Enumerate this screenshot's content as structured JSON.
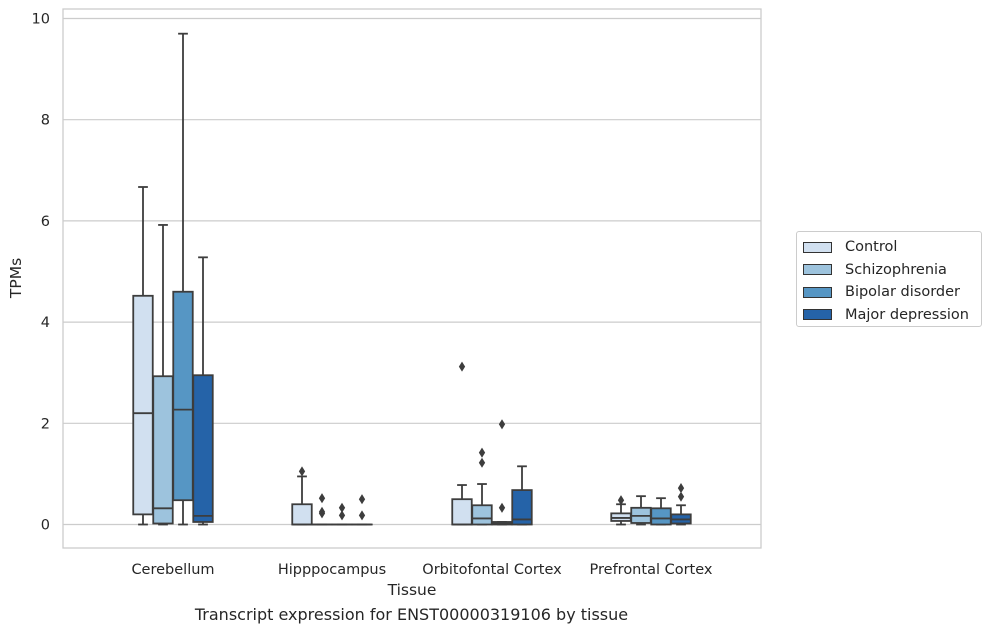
{
  "chart_data": {
    "type": "boxplot",
    "title": "",
    "caption": "Transcript expression for ENST00000319106 by tissue",
    "xlabel": "Tissue",
    "ylabel": "TPMs",
    "ylim": [
      -0.45,
      10.2
    ],
    "yticks": [
      0,
      2,
      4,
      6,
      8,
      10
    ],
    "grid": true,
    "legend_position": "right",
    "categories": [
      "Cerebellum",
      "Hipppocampus",
      "Orbitofontal Cortex",
      "Prefrontal Cortex"
    ],
    "series": [
      {
        "name": "Control",
        "color": "#d1e0f0",
        "boxes": [
          {
            "q1": 0.2,
            "median": 2.2,
            "q3": 4.52,
            "whislo": 0.0,
            "whishi": 6.67,
            "fliers": []
          },
          {
            "q1": 0.0,
            "median": 0.0,
            "q3": 0.4,
            "whislo": 0.0,
            "whishi": 0.95,
            "fliers": [
              1.05
            ]
          },
          {
            "q1": 0.0,
            "median": 0.0,
            "q3": 0.5,
            "whislo": 0.0,
            "whishi": 0.78,
            "fliers": [
              3.12
            ]
          },
          {
            "q1": 0.07,
            "median": 0.13,
            "q3": 0.22,
            "whislo": 0.0,
            "whishi": 0.4,
            "fliers": [
              0.48
            ]
          }
        ]
      },
      {
        "name": "Schizophrenia",
        "color": "#9dc3dd",
        "boxes": [
          {
            "q1": 0.02,
            "median": 0.32,
            "q3": 2.93,
            "whislo": 0.0,
            "whishi": 5.92,
            "fliers": []
          },
          {
            "q1": 0.0,
            "median": 0.0,
            "q3": 0.0,
            "whislo": 0.0,
            "whishi": 0.0,
            "fliers": [
              0.22,
              0.25,
              0.52
            ]
          },
          {
            "q1": 0.0,
            "median": 0.12,
            "q3": 0.38,
            "whislo": 0.0,
            "whishi": 0.8,
            "fliers": [
              1.22,
              1.42
            ]
          },
          {
            "q1": 0.03,
            "median": 0.17,
            "q3": 0.33,
            "whislo": 0.0,
            "whishi": 0.56,
            "fliers": []
          }
        ]
      },
      {
        "name": "Bipolar disorder",
        "color": "#5696c4",
        "boxes": [
          {
            "q1": 0.48,
            "median": 2.27,
            "q3": 4.6,
            "whislo": 0.0,
            "whishi": 9.7,
            "fliers": []
          },
          {
            "q1": 0.0,
            "median": 0.0,
            "q3": 0.0,
            "whislo": 0.0,
            "whishi": 0.0,
            "fliers": [
              0.18,
              0.33
            ]
          },
          {
            "q1": 0.0,
            "median": 0.02,
            "q3": 0.05,
            "whislo": 0.0,
            "whishi": 0.05,
            "fliers": [
              0.33,
              1.98
            ]
          },
          {
            "q1": 0.0,
            "median": 0.12,
            "q3": 0.32,
            "whislo": 0.0,
            "whishi": 0.52,
            "fliers": []
          }
        ]
      },
      {
        "name": "Major depression",
        "color": "#2563a8",
        "boxes": [
          {
            "q1": 0.05,
            "median": 0.17,
            "q3": 2.95,
            "whislo": 0.0,
            "whishi": 5.28,
            "fliers": []
          },
          {
            "q1": 0.0,
            "median": 0.0,
            "q3": 0.0,
            "whislo": 0.0,
            "whishi": 0.0,
            "fliers": [
              0.18,
              0.5
            ]
          },
          {
            "q1": 0.0,
            "median": 0.1,
            "q3": 0.68,
            "whislo": 0.0,
            "whishi": 1.15,
            "fliers": []
          },
          {
            "q1": 0.02,
            "median": 0.1,
            "q3": 0.2,
            "whislo": 0.0,
            "whishi": 0.38,
            "fliers": [
              0.55,
              0.72
            ]
          }
        ]
      }
    ]
  }
}
